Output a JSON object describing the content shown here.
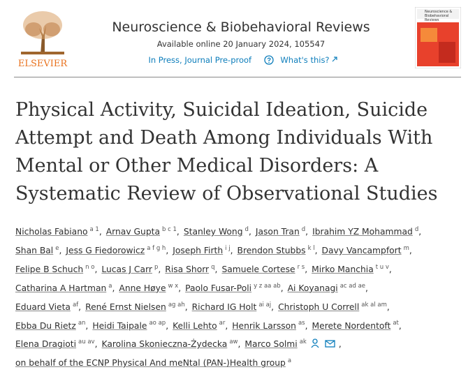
{
  "header": {
    "publisher": "ELSEVIER",
    "journal": "Neuroscience & Biobehavioral Reviews",
    "available": "Available online 20 January 2024, 105547",
    "status": "In Press, Journal Pre-proof",
    "whats_this": "What's this?",
    "cover_title": "Neuroscience & Biobehavioral Reviews"
  },
  "article": {
    "title": "Physical Activity, Suicidal Ideation, Suicide Attempt and Death Among Individuals With Mental or Other Medical Disorders: A Systematic Review of Observational Studies",
    "author_lines": [
      [
        {
          "name": "Nicholas Fabiano",
          "sup": "a 1",
          "sep": ","
        },
        {
          "name": "Arnav Gupta",
          "sup": "b c 1",
          "sep": ","
        },
        {
          "name": "Stanley Wong",
          "sup": "d",
          "sep": ","
        },
        {
          "name": "Jason Tran",
          "sup": "d",
          "sep": ","
        },
        {
          "name": "Ibrahim YZ Mohammad",
          "sup": "d",
          "sep": ","
        }
      ],
      [
        {
          "name": "Shan Bal",
          "sup": "e",
          "sep": ","
        },
        {
          "name": "Jess G Fiedorowicz",
          "sup": "a f g h",
          "sep": ","
        },
        {
          "name": "Joseph Firth",
          "sup": "i j",
          "sep": ","
        },
        {
          "name": "Brendon Stubbs",
          "sup": "k l",
          "sep": ","
        },
        {
          "name": "Davy Vancampfort",
          "sup": "m",
          "sep": ","
        }
      ],
      [
        {
          "name": "Felipe B Schuch",
          "sup": "n o",
          "sep": ","
        },
        {
          "name": "Lucas J Carr",
          "sup": "p",
          "sep": ","
        },
        {
          "name": "Risa Shorr",
          "sup": "q",
          "sep": ","
        },
        {
          "name": "Samuele Cortese",
          "sup": "r s",
          "sep": ","
        },
        {
          "name": "Mirko Manchia",
          "sup": "t u v",
          "sep": ","
        }
      ],
      [
        {
          "name": "Catharina A Hartman",
          "sup": "a",
          "sep": ","
        },
        {
          "name": "Anne Høye",
          "sup": "w x",
          "sep": ","
        },
        {
          "name": "Paolo Fusar-Poli",
          "sup": "y z aa ab",
          "sep": ","
        },
        {
          "name": "Ai Koyanagi",
          "sup": "ac ad ae",
          "sep": ","
        }
      ],
      [
        {
          "name": "Eduard Vieta",
          "sup": "af",
          "sep": ","
        },
        {
          "name": "René Ernst Nielsen",
          "sup": "ag ah",
          "sep": ","
        },
        {
          "name": "Richard IG Holt",
          "sup": "ai aj",
          "sep": ","
        },
        {
          "name": "Christoph U Correll",
          "sup": "ak al am",
          "sep": ","
        }
      ],
      [
        {
          "name": "Ebba Du Rietz",
          "sup": "an",
          "sep": ","
        },
        {
          "name": "Heidi Taipale",
          "sup": "ao ap",
          "sep": ","
        },
        {
          "name": "Kelli Lehto",
          "sup": "ar",
          "sep": ","
        },
        {
          "name": "Henrik Larsson",
          "sup": "as",
          "sep": ","
        },
        {
          "name": "Merete Nordentoft",
          "sup": "at",
          "sep": ","
        }
      ],
      [
        {
          "name": "Elena Dragioti",
          "sup": "au av",
          "sep": ","
        },
        {
          "name": "Karolina Skonieczna-Żydecka",
          "sup": "aw",
          "sep": ","
        },
        {
          "name": "Marco Solmi",
          "sup": "ak",
          "sep": ","
        }
      ],
      [
        {
          "name": "on behalf of the ECNP Physical And meNtal (PAN-)Health group",
          "sup": "a",
          "sep": ""
        }
      ]
    ]
  }
}
